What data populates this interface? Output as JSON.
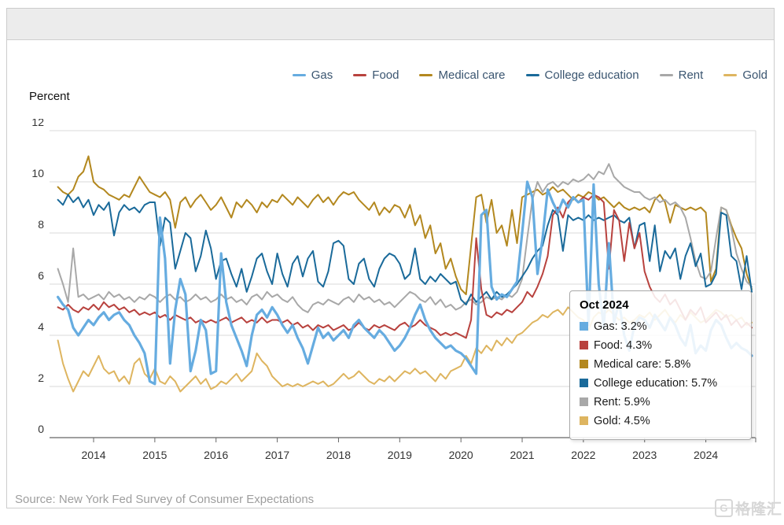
{
  "page": {
    "source_note": "Source: New York Fed Survey of Consumer Expectations",
    "watermark": {
      "logo_letter": "G",
      "text": "格隆汇"
    }
  },
  "chart_data": {
    "type": "line",
    "y_axis_title": "Percent",
    "ylim": [
      0,
      12
    ],
    "y_ticks": [
      0,
      2,
      4,
      6,
      8,
      10,
      12
    ],
    "x_year_labels": [
      2014,
      2015,
      2016,
      2017,
      2018,
      2019,
      2020,
      2021,
      2022,
      2023,
      2024
    ],
    "x_start_month": "2013-06",
    "x_end_month": "2024-10",
    "x_frequency": "monthly",
    "grid": "horizontal",
    "legend_position": "top-right",
    "axis_label_color": "#333333",
    "gridline_color": "#d9d9d9",
    "axis_line_color": "#666666",
    "series": [
      {
        "name": "Gas",
        "color": "#66ACE0",
        "values": [
          5.5,
          5.2,
          5.0,
          4.3,
          4.0,
          4.3,
          4.6,
          4.4,
          4.7,
          4.9,
          4.6,
          4.8,
          4.9,
          4.6,
          4.4,
          4.0,
          3.7,
          3.3,
          2.2,
          2.1,
          8.6,
          7.0,
          2.9,
          5.0,
          6.2,
          5.6,
          2.6,
          3.4,
          4.6,
          4.2,
          2.5,
          2.6,
          7.2,
          5.3,
          4.4,
          3.9,
          3.4,
          2.8,
          4.0,
          4.8,
          5.0,
          4.7,
          5.1,
          4.8,
          4.4,
          4.1,
          4.4,
          3.9,
          3.5,
          2.9,
          3.6,
          4.3,
          3.9,
          4.1,
          3.8,
          4.0,
          4.2,
          3.9,
          4.4,
          4.6,
          4.3,
          4.1,
          3.9,
          4.2,
          4.0,
          3.7,
          3.4,
          3.6,
          3.9,
          4.3,
          4.8,
          5.2,
          4.6,
          4.2,
          3.9,
          3.7,
          3.5,
          3.6,
          3.4,
          3.3,
          3.1,
          2.8,
          2.5,
          8.7,
          8.9,
          5.9,
          5.4,
          5.6,
          5.5,
          5.8,
          6.1,
          8.0,
          10.0,
          9.4,
          6.4,
          7.8,
          9.7,
          9.2,
          8.8,
          9.3,
          9.0,
          9.4,
          9.2,
          9.3,
          4.4,
          9.9,
          6.0,
          4.3,
          7.6,
          4.5,
          5.3,
          4.0,
          3.4,
          4.4,
          4.7,
          4.6,
          4.3,
          4.8,
          4.5,
          4.2,
          4.7,
          4.4,
          3.9,
          3.6,
          4.4,
          3.3,
          3.6,
          3.4,
          4.2,
          4.6,
          4.4,
          3.9,
          3.5,
          3.7,
          3.5,
          3.4,
          3.2
        ]
      },
      {
        "name": "Food",
        "color": "#B8423E",
        "values": [
          5.1,
          5.0,
          5.2,
          5.0,
          4.9,
          5.1,
          5.0,
          5.2,
          5.0,
          5.3,
          5.1,
          5.2,
          5.0,
          5.1,
          4.9,
          5.0,
          4.8,
          4.9,
          4.8,
          4.9,
          4.7,
          4.8,
          4.6,
          4.8,
          4.7,
          4.6,
          4.7,
          4.5,
          4.6,
          4.5,
          4.6,
          4.5,
          4.6,
          4.7,
          4.5,
          4.6,
          4.7,
          4.5,
          4.6,
          4.5,
          4.7,
          4.5,
          4.6,
          4.6,
          4.5,
          4.6,
          4.4,
          4.5,
          4.3,
          4.4,
          4.2,
          4.4,
          4.3,
          4.4,
          4.2,
          4.3,
          4.4,
          4.2,
          4.3,
          4.5,
          4.3,
          4.2,
          4.4,
          4.3,
          4.4,
          4.3,
          4.2,
          4.4,
          4.5,
          4.3,
          4.4,
          4.6,
          4.4,
          4.3,
          4.2,
          4.0,
          4.1,
          4.0,
          4.1,
          4.0,
          3.9,
          4.6,
          7.8,
          5.8,
          4.8,
          4.7,
          4.9,
          4.8,
          5.0,
          4.9,
          5.1,
          5.3,
          5.7,
          5.5,
          5.9,
          6.4,
          7.1,
          8.7,
          9.0,
          8.6,
          9.2,
          9.4,
          9.2,
          9.4,
          9.3,
          9.5,
          9.4,
          9.2,
          6.6,
          8.9,
          8.5,
          6.9,
          8.4,
          7.4,
          8.0,
          6.5,
          5.9,
          5.5,
          5.3,
          5.6,
          5.2,
          5.4,
          5.0,
          4.6,
          5.0,
          4.8,
          5.1,
          4.5,
          4.7,
          4.9,
          4.6,
          4.8,
          4.4,
          4.6,
          4.3,
          4.5,
          4.3
        ]
      },
      {
        "name": "Medical care",
        "color": "#B3881F",
        "values": [
          9.8,
          9.6,
          9.5,
          9.7,
          10.2,
          10.4,
          11.0,
          10.0,
          9.8,
          9.7,
          9.5,
          9.4,
          9.3,
          9.5,
          9.4,
          9.8,
          10.2,
          9.9,
          9.6,
          9.5,
          9.4,
          9.6,
          9.3,
          8.2,
          9.2,
          9.4,
          9.0,
          9.3,
          9.5,
          9.2,
          8.9,
          9.1,
          9.4,
          9.0,
          8.6,
          9.2,
          9.0,
          9.3,
          9.1,
          8.8,
          9.2,
          9.0,
          9.3,
          9.2,
          9.5,
          9.3,
          9.1,
          9.4,
          9.2,
          9.0,
          9.3,
          9.5,
          9.2,
          9.4,
          9.1,
          9.4,
          9.6,
          9.5,
          9.6,
          9.3,
          9.1,
          8.9,
          9.2,
          8.7,
          9.0,
          8.8,
          9.1,
          9.0,
          8.6,
          9.1,
          8.3,
          8.7,
          7.8,
          8.3,
          7.2,
          7.6,
          6.6,
          7.0,
          6.3,
          5.8,
          5.6,
          7.5,
          9.4,
          9.5,
          8.4,
          9.3,
          8.0,
          8.3,
          7.5,
          8.9,
          7.6,
          9.4,
          9.5,
          9.6,
          9.7,
          9.5,
          9.6,
          9.8,
          9.6,
          9.7,
          9.5,
          9.3,
          9.5,
          9.4,
          9.6,
          9.5,
          9.3,
          9.4,
          9.2,
          9.0,
          9.2,
          9.0,
          8.9,
          9.0,
          8.9,
          9.0,
          8.8,
          9.3,
          9.5,
          9.2,
          8.4,
          9.1,
          9.0,
          8.9,
          9.0,
          8.9,
          9.0,
          8.8,
          6.1,
          6.6,
          9.0,
          8.9,
          8.3,
          7.8,
          7.4,
          6.4,
          5.8
        ]
      },
      {
        "name": "College education",
        "color": "#1A6A9A",
        "values": [
          9.3,
          9.1,
          9.5,
          9.2,
          9.4,
          9.0,
          9.3,
          8.7,
          9.1,
          8.9,
          9.2,
          7.9,
          8.8,
          9.1,
          8.9,
          9.0,
          8.8,
          9.1,
          9.2,
          9.2,
          7.5,
          8.6,
          8.4,
          6.6,
          7.3,
          8.0,
          7.8,
          6.5,
          7.1,
          8.1,
          7.4,
          6.2,
          6.9,
          7.0,
          6.4,
          5.9,
          6.6,
          5.7,
          6.3,
          7.0,
          7.2,
          6.5,
          6.0,
          7.2,
          6.4,
          5.9,
          6.8,
          7.1,
          6.3,
          7.0,
          7.3,
          6.1,
          5.9,
          6.5,
          7.6,
          7.7,
          7.5,
          6.2,
          6.0,
          6.8,
          7.0,
          6.2,
          5.9,
          6.6,
          7.0,
          7.2,
          7.1,
          6.8,
          6.2,
          6.4,
          7.4,
          6.2,
          6.0,
          6.3,
          6.1,
          6.4,
          6.2,
          6.0,
          6.1,
          5.4,
          5.2,
          5.6,
          5.3,
          5.5,
          5.7,
          5.4,
          5.7,
          5.5,
          5.6,
          5.8,
          6.0,
          6.3,
          6.6,
          7.0,
          7.3,
          7.5,
          8.3,
          8.9,
          8.7,
          7.3,
          8.7,
          8.5,
          8.6,
          8.5,
          8.7,
          8.5,
          8.6,
          8.5,
          8.6,
          8.7,
          8.5,
          8.4,
          8.6,
          7.4,
          8.3,
          8.4,
          6.9,
          8.3,
          6.5,
          7.3,
          7.0,
          7.4,
          6.2,
          7.1,
          7.6,
          6.7,
          7.2,
          5.9,
          6.0,
          6.4,
          8.8,
          8.7,
          7.1,
          6.9,
          5.8,
          7.1,
          5.7
        ]
      },
      {
        "name": "Rent",
        "color": "#A8A8A8",
        "values": [
          6.6,
          6.0,
          5.3,
          7.4,
          5.5,
          5.6,
          5.4,
          5.5,
          5.6,
          5.4,
          5.7,
          5.5,
          5.6,
          5.4,
          5.5,
          5.3,
          5.5,
          5.4,
          5.6,
          5.5,
          5.3,
          5.5,
          5.6,
          5.4,
          5.5,
          5.3,
          5.4,
          5.6,
          5.4,
          5.5,
          5.3,
          5.4,
          5.6,
          5.4,
          5.5,
          5.3,
          5.4,
          5.2,
          5.5,
          5.6,
          5.4,
          5.7,
          5.5,
          5.6,
          5.4,
          5.3,
          5.5,
          5.2,
          5.0,
          4.9,
          5.2,
          5.3,
          5.2,
          5.4,
          5.3,
          5.2,
          5.4,
          5.5,
          5.3,
          5.6,
          5.4,
          5.5,
          5.3,
          5.4,
          5.2,
          5.3,
          5.1,
          5.3,
          5.5,
          5.7,
          5.6,
          5.4,
          5.3,
          5.5,
          5.2,
          5.4,
          5.1,
          5.2,
          5.0,
          5.1,
          5.3,
          5.4,
          5.2,
          5.3,
          5.5,
          5.4,
          5.5,
          5.4,
          5.6,
          5.5,
          5.7,
          6.2,
          7.8,
          9.3,
          10.0,
          9.6,
          9.9,
          10.0,
          9.8,
          10.0,
          9.9,
          10.1,
          10.0,
          10.1,
          10.3,
          10.1,
          10.4,
          10.3,
          10.7,
          10.2,
          10.0,
          9.8,
          9.7,
          9.6,
          9.6,
          9.4,
          9.3,
          9.4,
          9.2,
          9.3,
          9.1,
          9.2,
          9.0,
          8.6,
          7.8,
          6.9,
          6.3,
          6.2,
          6.5,
          7.8,
          9.0,
          8.9,
          8.2,
          7.2,
          6.6,
          6.1,
          5.9
        ]
      },
      {
        "name": "Gold",
        "color": "#DEB560",
        "values": [
          3.8,
          2.9,
          2.3,
          1.8,
          2.2,
          2.6,
          2.4,
          2.8,
          3.2,
          2.7,
          2.5,
          2.6,
          2.2,
          2.4,
          2.1,
          2.9,
          3.1,
          2.5,
          2.3,
          2.7,
          2.2,
          2.1,
          2.4,
          2.2,
          1.8,
          2.0,
          2.2,
          2.4,
          2.1,
          2.3,
          1.9,
          2.0,
          2.2,
          2.1,
          2.3,
          2.5,
          2.2,
          2.4,
          2.6,
          3.3,
          3.0,
          2.8,
          2.4,
          2.2,
          2.0,
          2.1,
          2.0,
          2.1,
          2.0,
          2.1,
          2.2,
          2.1,
          2.2,
          2.0,
          2.1,
          2.3,
          2.5,
          2.3,
          2.4,
          2.6,
          2.4,
          2.2,
          2.1,
          2.3,
          2.2,
          2.4,
          2.2,
          2.4,
          2.6,
          2.5,
          2.7,
          2.5,
          2.6,
          2.4,
          2.2,
          2.5,
          2.3,
          2.6,
          2.7,
          2.8,
          3.2,
          2.9,
          3.5,
          3.3,
          3.6,
          3.4,
          3.8,
          3.6,
          3.9,
          3.7,
          4.0,
          4.1,
          4.3,
          4.5,
          4.6,
          4.8,
          4.7,
          4.9,
          5.0,
          4.8,
          5.1,
          4.9,
          4.7,
          4.6,
          4.2,
          4.7,
          4.9,
          4.8,
          5.0,
          4.8,
          4.6,
          4.7,
          4.5,
          4.6,
          4.8,
          4.7,
          4.9,
          4.6,
          4.8,
          5.0,
          4.7,
          4.5,
          4.8,
          4.6,
          4.9,
          4.7,
          4.5,
          4.6,
          4.8,
          5.0,
          4.9,
          4.7,
          4.8,
          4.6,
          4.7,
          4.4,
          4.5
        ]
      }
    ],
    "tooltip": {
      "title": "Oct 2024",
      "rows": [
        {
          "name": "Gas",
          "value": "3.2%"
        },
        {
          "name": "Food",
          "value": "4.3%"
        },
        {
          "name": "Medical care",
          "value": "5.8%"
        },
        {
          "name": "College education",
          "value": "5.7%"
        },
        {
          "name": "Rent",
          "value": "5.9%"
        },
        {
          "name": "Gold",
          "value": "4.5%"
        }
      ]
    }
  }
}
